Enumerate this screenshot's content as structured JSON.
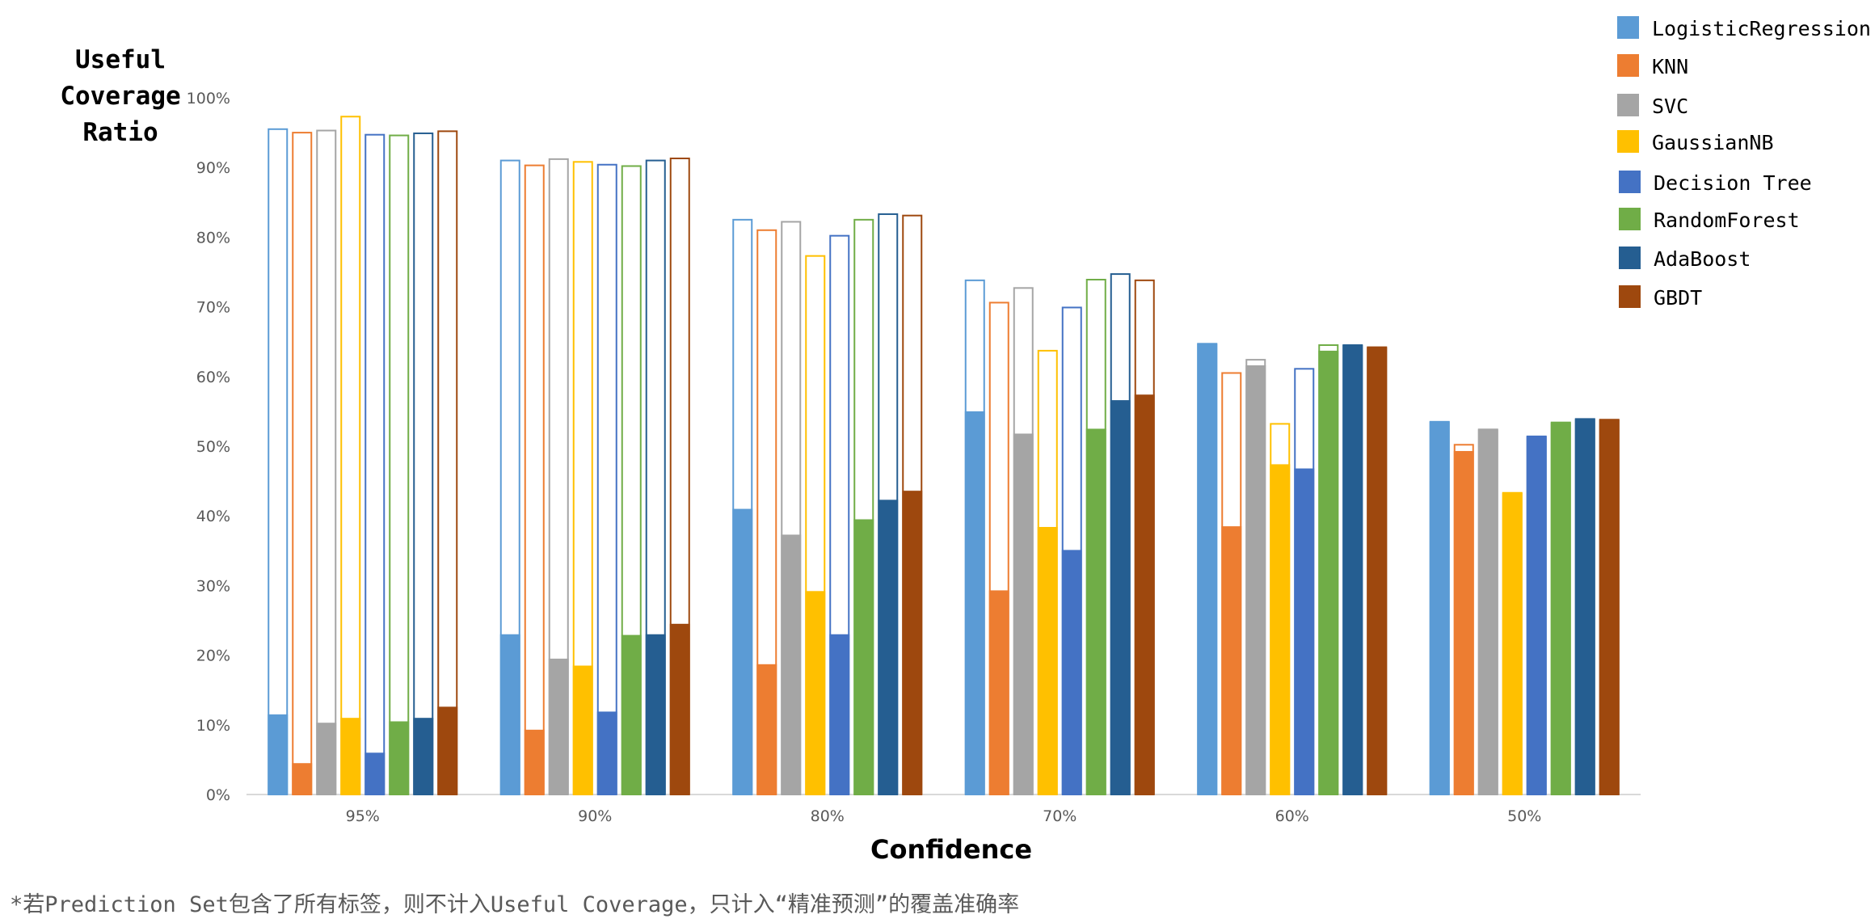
{
  "chart_data": {
    "type": "bar",
    "ylabel_lines": [
      "Useful",
      "Coverage",
      "Ratio"
    ],
    "xlabel": "Confidence",
    "ylim": [
      0,
      100
    ],
    "yticks": [
      "0%",
      "10%",
      "20%",
      "30%",
      "40%",
      "50%",
      "60%",
      "70%",
      "80%",
      "90%",
      "100%"
    ],
    "categories": [
      "95%",
      "90%",
      "80%",
      "70%",
      "60%",
      "50%"
    ],
    "legend_position": "top-right",
    "note": "filled portion = useful (precise) coverage; outline = total coverage",
    "series": [
      {
        "name": "LogisticRegression",
        "color": "#5B9BD5",
        "filled": [
          11.5,
          23,
          41,
          55,
          64.7,
          53.5
        ],
        "total": [
          95.5,
          91,
          82.5,
          73.8,
          64.7,
          53.5
        ]
      },
      {
        "name": "KNN",
        "color": "#ED7D31",
        "filled": [
          4.5,
          9.3,
          18.7,
          29.3,
          38.5,
          49.3
        ],
        "total": [
          95,
          90.3,
          81,
          70.6,
          60.5,
          50.2
        ]
      },
      {
        "name": "SVC",
        "color": "#A5A5A5",
        "filled": [
          10.3,
          19.5,
          37.3,
          51.8,
          61.6,
          52.4
        ],
        "total": [
          95.3,
          91.2,
          82.2,
          72.7,
          62.4,
          52.4
        ]
      },
      {
        "name": "GaussianNB",
        "color": "#FFC000",
        "filled": [
          11,
          18.5,
          29.2,
          38.4,
          47.4,
          43.3
        ],
        "total": [
          97.3,
          90.8,
          77.3,
          63.7,
          53.2,
          43.3
        ]
      },
      {
        "name": "Decision Tree",
        "color": "#4472C4",
        "filled": [
          6,
          11.9,
          23,
          35.1,
          46.8,
          51.4
        ],
        "total": [
          94.7,
          90.4,
          80.2,
          69.9,
          61.1,
          51.4
        ]
      },
      {
        "name": "RandomForest",
        "color": "#70AD47",
        "filled": [
          10.5,
          22.9,
          39.5,
          52.5,
          63.7,
          53.4
        ],
        "total": [
          94.6,
          90.2,
          82.5,
          73.9,
          64.5,
          53.4
        ]
      },
      {
        "name": "AdaBoost",
        "color": "#255E91",
        "filled": [
          11,
          23,
          42.3,
          56.6,
          64.5,
          53.9
        ],
        "total": [
          94.9,
          91,
          83.3,
          74.7,
          64.5,
          53.9
        ]
      },
      {
        "name": "GBDT",
        "color": "#9E480E",
        "filled": [
          12.6,
          24.5,
          43.6,
          57.4,
          64.2,
          53.8
        ],
        "total": [
          95.2,
          91.3,
          83.1,
          73.8,
          64.2,
          53.8
        ]
      }
    ]
  },
  "footnote": "*若Prediction Set包含了所有标签，则不计入Useful Coverage，只计入“精准预测”的覆盖准确率"
}
